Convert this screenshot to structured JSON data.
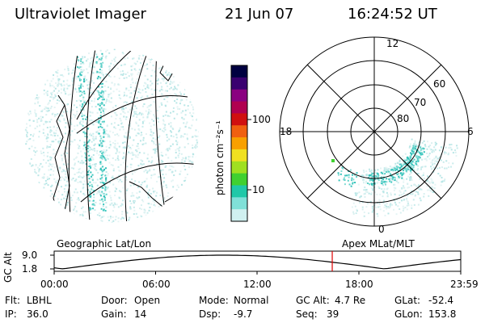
{
  "header": {
    "title": "Ultraviolet Imager",
    "date": "21 Jun 07",
    "time": "16:24:52 UT"
  },
  "colorbar": {
    "label": "photon cm⁻²s⁻¹",
    "ticks": [
      "100",
      "10"
    ],
    "colors": [
      "#000040",
      "#3a0070",
      "#8a0080",
      "#b00050",
      "#d01010",
      "#f06010",
      "#f8a000",
      "#f0e020",
      "#a0e020",
      "#40d030",
      "#20c8a8",
      "#80e0d8",
      "#d0f0f0"
    ]
  },
  "geo_panel": {
    "label": "Geographic Lat/Lon"
  },
  "polar_panel": {
    "label": "Apex MLat/MLT",
    "mlt_labels": {
      "top": "12",
      "left": "18",
      "right": "6",
      "bottom": "0"
    },
    "lat_labels": [
      "60",
      "70",
      "80"
    ]
  },
  "timeline": {
    "ylabel": "GC Alt",
    "ytick_top": "9.0",
    "ytick_bottom": "1.8",
    "xticks": [
      "00:00",
      "06:00",
      "12:00",
      "18:00",
      "23:59"
    ],
    "marker_color": "#e00000"
  },
  "info": {
    "flt_label": "Flt:",
    "flt_value": "LBHL",
    "ip_label": "IP:",
    "ip_value": "36.0",
    "door_label": "Door:",
    "door_value": "Open",
    "gain_label": "Gain:",
    "gain_value": "14",
    "mode_label": "Mode:",
    "mode_value": "Normal",
    "dsp_label": "Dsp:",
    "dsp_value": "-9.7",
    "gcalt_label": "GC Alt:",
    "gcalt_value": "4.7 Re",
    "seq_label": "Seq:",
    "seq_value": "39",
    "glat_label": "GLat:",
    "glat_value": "-52.4",
    "glon_label": "GLon:",
    "glon_value": "153.8"
  }
}
